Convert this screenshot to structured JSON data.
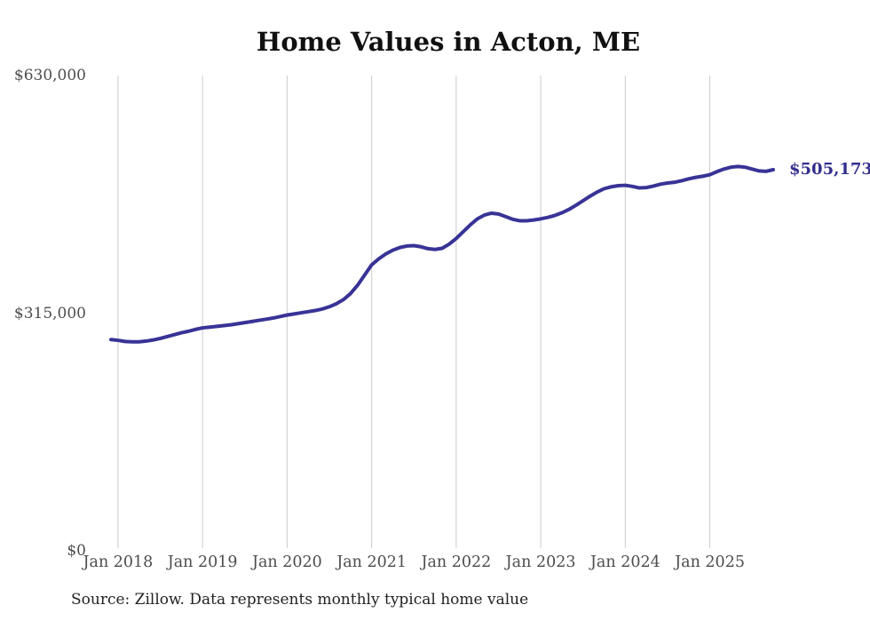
{
  "source_note": "Source: Zillow. Data represents monthly typical home value",
  "colors": {
    "line": "#383396",
    "end_label": "#322e8e",
    "grid": "#cccccc",
    "tick_text": "#4d4d4d",
    "title_text": "#111111",
    "background": "#ffffff"
  },
  "chart_data": {
    "type": "line",
    "title": "Home Values in Acton, ME",
    "series_name": "Monthly typical home value",
    "xlabel": "",
    "ylabel": "",
    "ylim": [
      0,
      630000
    ],
    "grid": "vertical-only",
    "legend": "none",
    "end_label": "$505,173",
    "end_value": 505173,
    "y_ticks": [
      {
        "label": "$630,000",
        "value": 630000
      },
      {
        "label": "$315,000",
        "value": 315000
      },
      {
        "label": "$0",
        "value": 0
      }
    ],
    "x_ticks": [
      {
        "label": "Jan 2018",
        "month": "2018-01"
      },
      {
        "label": "Jan 2019",
        "month": "2019-01"
      },
      {
        "label": "Jan 2020",
        "month": "2020-01"
      },
      {
        "label": "Jan 2021",
        "month": "2021-01"
      },
      {
        "label": "Jan 2022",
        "month": "2022-01"
      },
      {
        "label": "Jan 2023",
        "month": "2023-01"
      },
      {
        "label": "Jan 2024",
        "month": "2024-01"
      },
      {
        "label": "Jan 2025",
        "month": "2025-01"
      }
    ],
    "x": [
      "2017-12",
      "2018-01",
      "2018-02",
      "2018-03",
      "2018-04",
      "2018-05",
      "2018-06",
      "2018-07",
      "2018-08",
      "2018-09",
      "2018-10",
      "2018-11",
      "2018-12",
      "2019-01",
      "2019-02",
      "2019-03",
      "2019-04",
      "2019-05",
      "2019-06",
      "2019-07",
      "2019-08",
      "2019-09",
      "2019-10",
      "2019-11",
      "2019-12",
      "2020-01",
      "2020-02",
      "2020-03",
      "2020-04",
      "2020-05",
      "2020-06",
      "2020-07",
      "2020-08",
      "2020-09",
      "2020-10",
      "2020-11",
      "2020-12",
      "2021-01",
      "2021-02",
      "2021-03",
      "2021-04",
      "2021-05",
      "2021-06",
      "2021-07",
      "2021-08",
      "2021-09",
      "2021-10",
      "2021-11",
      "2021-12",
      "2022-01",
      "2022-02",
      "2022-03",
      "2022-04",
      "2022-05",
      "2022-06",
      "2022-07",
      "2022-08",
      "2022-09",
      "2022-10",
      "2022-11",
      "2022-12",
      "2023-01",
      "2023-02",
      "2023-03",
      "2023-04",
      "2023-05",
      "2023-06",
      "2023-07",
      "2023-08",
      "2023-09",
      "2023-10",
      "2023-11",
      "2023-12",
      "2024-01",
      "2024-02",
      "2024-03",
      "2024-04",
      "2024-05",
      "2024-06",
      "2024-07",
      "2024-08",
      "2024-09",
      "2024-10",
      "2024-11",
      "2024-12",
      "2025-01",
      "2025-02",
      "2025-03",
      "2025-04",
      "2025-05",
      "2025-06",
      "2025-07",
      "2025-08",
      "2025-09",
      "2025-10"
    ],
    "values": [
      280000,
      279000,
      277500,
      277000,
      277000,
      278000,
      279500,
      281500,
      284000,
      286500,
      289000,
      291000,
      293500,
      295500,
      296500,
      297500,
      298500,
      299500,
      301000,
      302500,
      304000,
      305500,
      307000,
      308500,
      310500,
      312500,
      314000,
      315500,
      317000,
      318500,
      320500,
      323500,
      327500,
      333000,
      341000,
      352000,
      365500,
      379000,
      387000,
      393500,
      398500,
      402000,
      404000,
      404500,
      403000,
      400500,
      399500,
      401000,
      406500,
      414000,
      423000,
      432000,
      440000,
      445000,
      447500,
      446500,
      443000,
      439500,
      437500,
      437500,
      438500,
      440000,
      442000,
      444500,
      448000,
      452500,
      458000,
      464000,
      470000,
      475500,
      480000,
      482500,
      484000,
      484500,
      483000,
      481000,
      481500,
      483500,
      486000,
      487500,
      488500,
      490500,
      493000,
      495000,
      496500,
      498500,
      502500,
      506000,
      508500,
      509500,
      508500,
      506000,
      503500,
      503000,
      505173
    ]
  }
}
